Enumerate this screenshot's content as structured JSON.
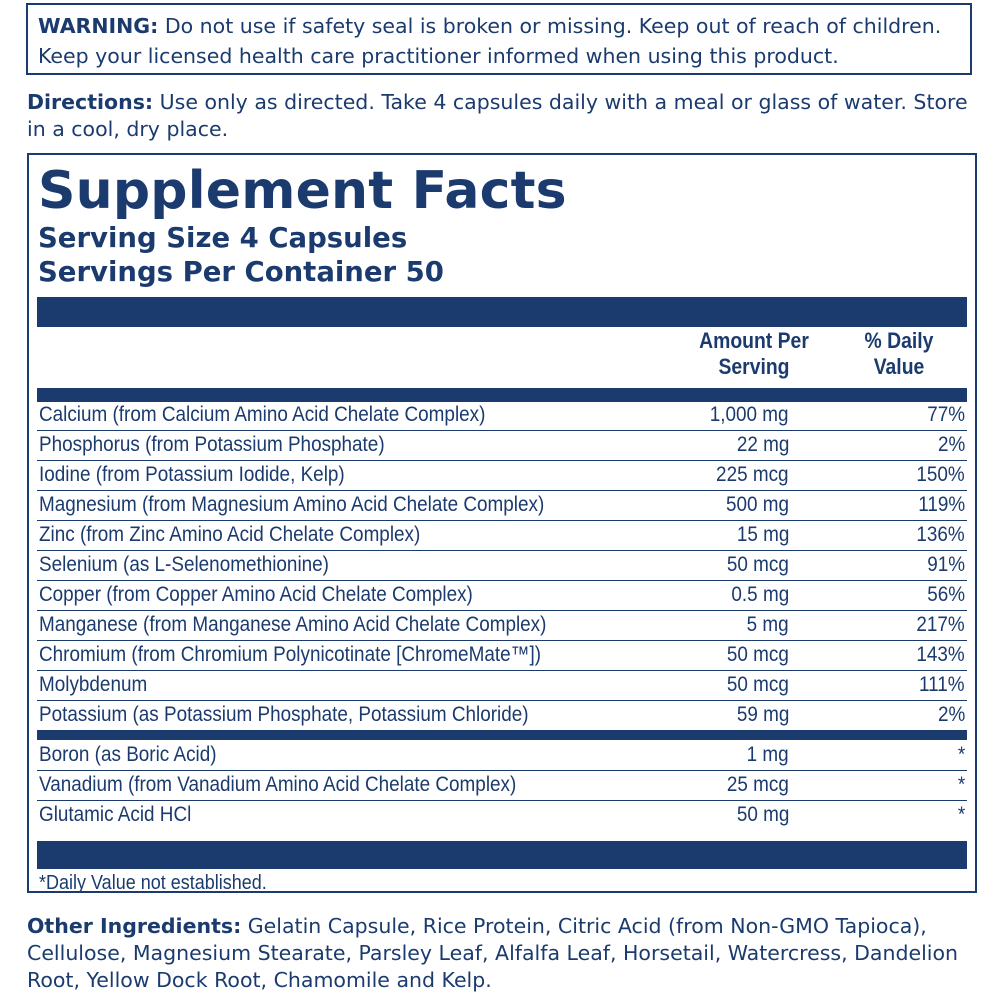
{
  "warning": {
    "label": "WARNING:",
    "line1": " Do not use if safety seal is broken or missing. Keep out of reach of children.",
    "line2": "Keep your licensed health care practitioner informed when using this product."
  },
  "directions": {
    "label": "Directions:",
    "line1": " Use only as directed. Take 4 capsules daily with a meal or glass of water. Store",
    "line2": "in a cool, dry place."
  },
  "facts": {
    "title": "Supplement Facts",
    "serving_size": "Serving Size 4 Capsules",
    "servings_per_container": "Servings Per Container 50",
    "col_amount_line1": "Amount Per",
    "col_amount_line2": "Serving",
    "col_dv_line1": "% Daily",
    "col_dv_line2": "Value",
    "rows": [
      {
        "name": "Calcium (from Calcium Amino Acid Chelate Complex)",
        "amount": "1,000 mg",
        "dv": "77%"
      },
      {
        "name": "Phosphorus (from Potassium Phosphate)",
        "amount": "22 mg",
        "dv": "2%"
      },
      {
        "name": "Iodine (from Potassium Iodide, Kelp)",
        "amount": "225 mcg",
        "dv": "150%"
      },
      {
        "name": "Magnesium (from Magnesium Amino Acid Chelate Complex)",
        "amount": "500 mg",
        "dv": "119%"
      },
      {
        "name": "Zinc (from Zinc Amino Acid Chelate Complex)",
        "amount": "15 mg",
        "dv": "136%"
      },
      {
        "name": "Selenium (as L-Selenomethionine)",
        "amount": "50 mcg",
        "dv": "91%"
      },
      {
        "name": "Copper (from Copper Amino Acid Chelate Complex)",
        "amount": "0.5 mg",
        "dv": "56%"
      },
      {
        "name": "Manganese (from Manganese Amino Acid Chelate Complex)",
        "amount": "5 mg",
        "dv": "217%"
      },
      {
        "name": "Chromium (from Chromium Polynicotinate [ChromeMate™])",
        "amount": "50 mcg",
        "dv": "143%"
      },
      {
        "name": "Molybdenum",
        "amount": "50 mcg",
        "dv": "111%"
      },
      {
        "name": "Potassium (as Potassium Phosphate, Potassium Chloride)",
        "amount": "59 mg",
        "dv": "2%"
      }
    ],
    "rows_not_established": [
      {
        "name": "Boron (as Boric Acid)",
        "amount": "1 mg",
        "dv": "*"
      },
      {
        "name": "Vanadium (from Vanadium Amino Acid Chelate Complex)",
        "amount": "25 mcg",
        "dv": "*"
      },
      {
        "name": "Glutamic Acid HCl",
        "amount": "50 mg",
        "dv": "*"
      }
    ],
    "footnote": "*Daily Value not established."
  },
  "other_ingredients": {
    "label": "Other Ingredients:",
    "line1": " Gelatin Capsule, Rice Protein, Citric Acid (from Non-GMO Tapioca),",
    "line2": "Cellulose, Magnesium Stearate, Parsley Leaf, Alfalfa Leaf, Horsetail, Watercress, Dandelion",
    "line3": "Root, Yellow Dock Root, Chamomile and Kelp."
  }
}
